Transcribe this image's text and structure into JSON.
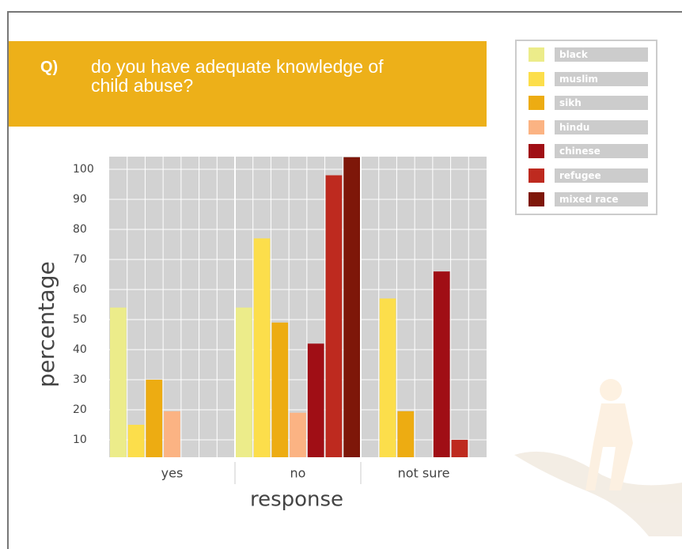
{
  "chart_data": {
    "type": "bar",
    "title_prefix": "Q)",
    "title": "do you have adequate knowledge of child abuse?",
    "x_label": "response",
    "y_label": "percentage",
    "categories": [
      "yes",
      "no",
      "not sure"
    ],
    "series": [
      {
        "name": "black",
        "color": "#ecec8a",
        "values": [
          54,
          54,
          null
        ]
      },
      {
        "name": "muslim",
        "color": "#fcde4b",
        "values": [
          15,
          77,
          57
        ]
      },
      {
        "name": "sikh",
        "color": "#edac12",
        "values": [
          30,
          49,
          19.5
        ]
      },
      {
        "name": "hindu",
        "color": "#fbb383",
        "values": [
          19.5,
          19,
          null
        ]
      },
      {
        "name": "chinese",
        "color": "#a00e15",
        "values": [
          null,
          42,
          66
        ]
      },
      {
        "name": "refugee",
        "color": "#be2a1f",
        "values": [
          null,
          98,
          10
        ]
      },
      {
        "name": "mixed race",
        "color": "#7e1709",
        "values": [
          null,
          104,
          null
        ]
      }
    ],
    "ylim": [
      4.2,
      104.2
    ],
    "yticks": [
      10,
      20,
      30,
      40,
      50,
      60,
      70,
      80,
      90,
      100
    ],
    "grid": true
  }
}
